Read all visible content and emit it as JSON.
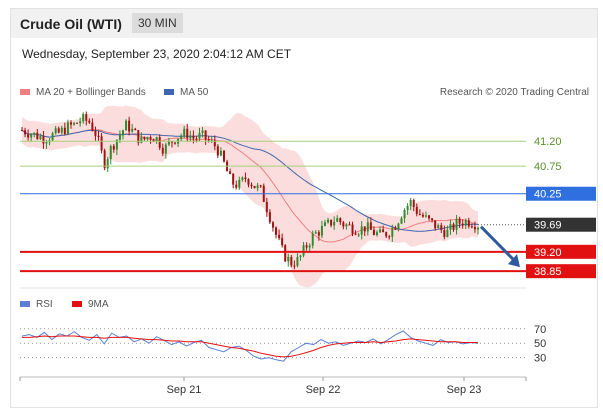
{
  "header": {
    "title": "Crude Oil (WTI)",
    "timeframe": "30 MIN"
  },
  "timestamp": "Wednesday, September 23, 2020 2:04:12 AM CET",
  "legend": {
    "item1": "MA 20 + Bollinger Bands",
    "item2": "MA 50"
  },
  "credit": "Research © 2020 Trading Central",
  "rsi_legend": {
    "item1": "RSI",
    "item2": "9MA"
  },
  "colors": {
    "bollinger_fill": "#fbd7d7",
    "ma20": "#f08080",
    "ma50": "#3d67b0",
    "candle_up": "#2e8b2e",
    "candle_down": "#a11111",
    "resistance_green": "#a6d07a",
    "resistance_blue": "#2f6fe0",
    "support_red": "#e21111",
    "current_price": "#333333",
    "arrow": "#2f5a9e",
    "rsi": "#5b7fd6",
    "rsi_ma": "#e21111"
  },
  "chart_data": {
    "type": "candlestick",
    "x_ticks": [
      "Sep 21",
      "Sep 22",
      "Sep 23"
    ],
    "ylim": [
      38.6,
      41.8
    ],
    "levels": [
      {
        "label": "41.20",
        "value": 41.2,
        "kind": "resistance",
        "color": "#a6d07a"
      },
      {
        "label": "40.75",
        "value": 40.75,
        "kind": "resistance",
        "color": "#a6d07a"
      },
      {
        "label": "40.25",
        "value": 40.25,
        "kind": "pivot",
        "color": "#2f6fe0"
      },
      {
        "label": "39.69",
        "value": 39.69,
        "kind": "current",
        "color": "#333333"
      },
      {
        "label": "39.20",
        "value": 39.2,
        "kind": "support",
        "color": "#e21111"
      },
      {
        "label": "38.85",
        "value": 38.85,
        "kind": "support",
        "color": "#e21111"
      }
    ],
    "price_path": [
      41.4,
      41.35,
      41.3,
      41.25,
      41.3,
      41.35,
      41.45,
      41.5,
      41.6,
      41.55,
      41.3,
      40.8,
      41.1,
      41.3,
      41.5,
      41.35,
      41.2,
      41.3,
      41.25,
      41.05,
      41.2,
      41.3,
      41.35,
      41.25,
      41.3,
      41.2,
      41.1,
      40.8,
      40.45,
      40.4,
      40.55,
      40.4,
      40.3,
      39.9,
      39.5,
      39.15,
      39.0,
      39.05,
      39.3,
      39.5,
      39.6,
      39.7,
      39.8,
      39.7,
      39.65,
      39.6,
      39.65,
      39.55,
      39.5,
      39.55,
      39.7,
      39.95,
      40.1,
      39.9,
      39.8,
      39.7,
      39.6,
      39.55,
      39.7,
      39.75,
      39.75,
      39.69
    ],
    "projection": {
      "from": 39.69,
      "to": 38.85
    },
    "rsi": {
      "levels": [
        70,
        50,
        30
      ],
      "ylim": [
        10,
        85
      ],
      "values": [
        60,
        62,
        58,
        65,
        55,
        63,
        60,
        66,
        58,
        54,
        62,
        49,
        64,
        58,
        60,
        52,
        56,
        50,
        59,
        54,
        48,
        52,
        46,
        51,
        54,
        44,
        41,
        38,
        44,
        46,
        40,
        32,
        28,
        30,
        27,
        25,
        38,
        44,
        50,
        48,
        55,
        50,
        52,
        47,
        50,
        53,
        51,
        56,
        49,
        55,
        62,
        67,
        58,
        53,
        50,
        47,
        55,
        51,
        52,
        49,
        51,
        50
      ],
      "ma": [
        58,
        58,
        59,
        60,
        59,
        60,
        60,
        60,
        59,
        58,
        58,
        57,
        58,
        58,
        58,
        57,
        56,
        55,
        55,
        54,
        53,
        53,
        52,
        52,
        52,
        50,
        48,
        46,
        44,
        43,
        41,
        39,
        36,
        34,
        32,
        31,
        32,
        34,
        37,
        40,
        44,
        47,
        49,
        50,
        51,
        51,
        51,
        52,
        51,
        52,
        53,
        55,
        56,
        55,
        54,
        53,
        52,
        52,
        52,
        51,
        51,
        51
      ]
    }
  }
}
